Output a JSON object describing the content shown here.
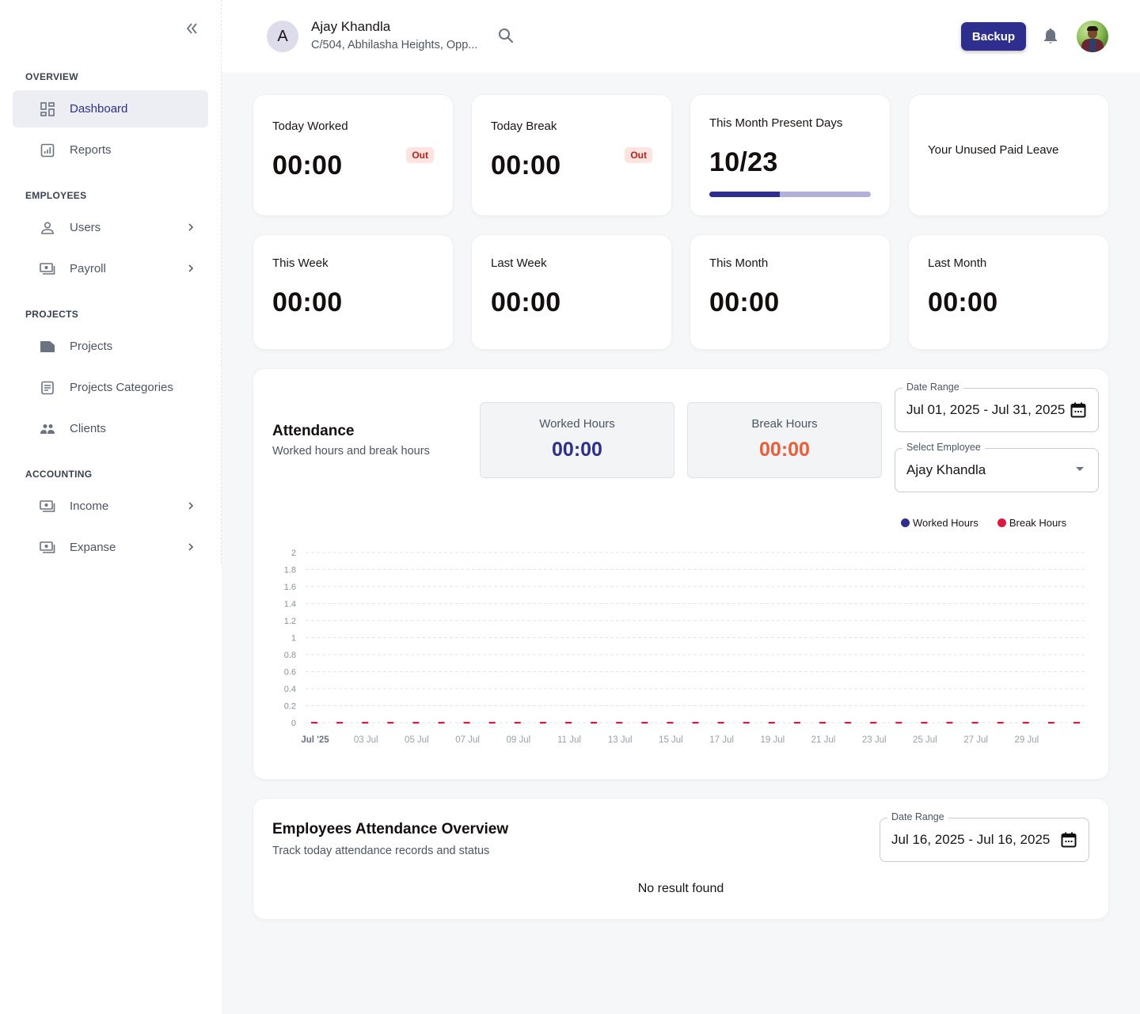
{
  "sidebar": {
    "collapse_icon": "double-chevron-left-icon",
    "sections": [
      {
        "label": "OVERVIEW",
        "items": [
          {
            "label": "Dashboard",
            "icon": "dashboard-grid-icon",
            "active": true
          },
          {
            "label": "Reports",
            "icon": "bar-chart-icon",
            "active": false
          }
        ]
      },
      {
        "label": "EMPLOYEES",
        "items": [
          {
            "label": "Users",
            "icon": "person-icon",
            "has_submenu": true
          },
          {
            "label": "Payroll",
            "icon": "money-icon",
            "has_submenu": true
          }
        ]
      },
      {
        "label": "PROJECTS",
        "items": [
          {
            "label": "Projects",
            "icon": "folder-tag-icon"
          },
          {
            "label": "Projects Categories",
            "icon": "document-list-icon"
          },
          {
            "label": "Clients",
            "icon": "people-icon"
          }
        ]
      },
      {
        "label": "ACCOUNTING",
        "items": [
          {
            "label": "Income",
            "icon": "money-icon",
            "has_submenu": true
          },
          {
            "label": "Expanse",
            "icon": "money-icon",
            "has_submenu": true
          }
        ]
      }
    ]
  },
  "header": {
    "org_initial": "A",
    "org_name": "Ajay Khandla",
    "org_address": "C/504, Abhilasha Heights, Opp...",
    "backup_label": "Backup"
  },
  "stats": {
    "today_worked": {
      "title": "Today Worked",
      "value": "00:00",
      "badge": "Out"
    },
    "today_break": {
      "title": "Today Break",
      "value": "00:00",
      "badge": "Out"
    },
    "present_days": {
      "title": "This Month Present Days",
      "value": "10/23",
      "progress_percent": 43.5
    },
    "unused_leave": {
      "title": "Your Unused Paid Leave"
    },
    "this_week": {
      "title": "This Week",
      "value": "00:00"
    },
    "last_week": {
      "title": "Last Week",
      "value": "00:00"
    },
    "this_month": {
      "title": "This Month",
      "value": "00:00"
    },
    "last_month": {
      "title": "Last Month",
      "value": "00:00"
    }
  },
  "attendance": {
    "title": "Attendance",
    "subtitle": "Worked hours and break hours",
    "worked_label": "Worked Hours",
    "worked_value": "00:00",
    "break_label": "Break Hours",
    "break_value": "00:00",
    "date_range_label": "Date Range",
    "date_range_value": "Jul 01, 2025 - Jul 31, 2025",
    "employee_label": "Select Employee",
    "employee_value": "Ajay Khandla",
    "colors": {
      "worked": "#2e2e8f",
      "break_text": "#f05a36",
      "break_series": "#e0173d"
    }
  },
  "chart_data": {
    "type": "line",
    "title": "",
    "xlabel": "",
    "ylabel": "",
    "ylim": [
      0,
      2
    ],
    "y_ticks": [
      "0",
      "0.2",
      "0.4",
      "0.6",
      "0.8",
      "1",
      "1.2",
      "1.4",
      "1.6",
      "1.8",
      "2"
    ],
    "x_tick_labels": [
      "Jul '25",
      "03 Jul",
      "05 Jul",
      "07 Jul",
      "09 Jul",
      "11 Jul",
      "13 Jul",
      "15 Jul",
      "17 Jul",
      "19 Jul",
      "21 Jul",
      "23 Jul",
      "25 Jul",
      "27 Jul",
      "29 Jul"
    ],
    "x": [
      "01 Jul",
      "02 Jul",
      "03 Jul",
      "04 Jul",
      "05 Jul",
      "06 Jul",
      "07 Jul",
      "08 Jul",
      "09 Jul",
      "10 Jul",
      "11 Jul",
      "12 Jul",
      "13 Jul",
      "14 Jul",
      "15 Jul",
      "16 Jul",
      "17 Jul",
      "18 Jul",
      "19 Jul",
      "20 Jul",
      "21 Jul",
      "22 Jul",
      "23 Jul",
      "24 Jul",
      "25 Jul",
      "26 Jul",
      "27 Jul",
      "28 Jul",
      "29 Jul",
      "30 Jul",
      "31 Jul"
    ],
    "series": [
      {
        "name": "Worked Hours",
        "color": "#2e2e8f",
        "values": [
          0,
          0,
          0,
          0,
          0,
          0,
          0,
          0,
          0,
          0,
          0,
          0,
          0,
          0,
          0,
          0,
          0,
          0,
          0,
          0,
          0,
          0,
          0,
          0,
          0,
          0,
          0,
          0,
          0,
          0,
          0
        ]
      },
      {
        "name": "Break Hours",
        "color": "#e0173d",
        "values": [
          0,
          0,
          0,
          0,
          0,
          0,
          0,
          0,
          0,
          0,
          0,
          0,
          0,
          0,
          0,
          0,
          0,
          0,
          0,
          0,
          0,
          0,
          0,
          0,
          0,
          0,
          0,
          0,
          0,
          0,
          0
        ]
      }
    ],
    "grid": true,
    "legend_position": "top-right"
  },
  "overview": {
    "title": "Employees Attendance Overview",
    "subtitle": "Track today attendance records and status",
    "date_range_label": "Date Range",
    "date_range_value": "Jul 16, 2025 - Jul 16, 2025",
    "empty_text": "No result found"
  }
}
